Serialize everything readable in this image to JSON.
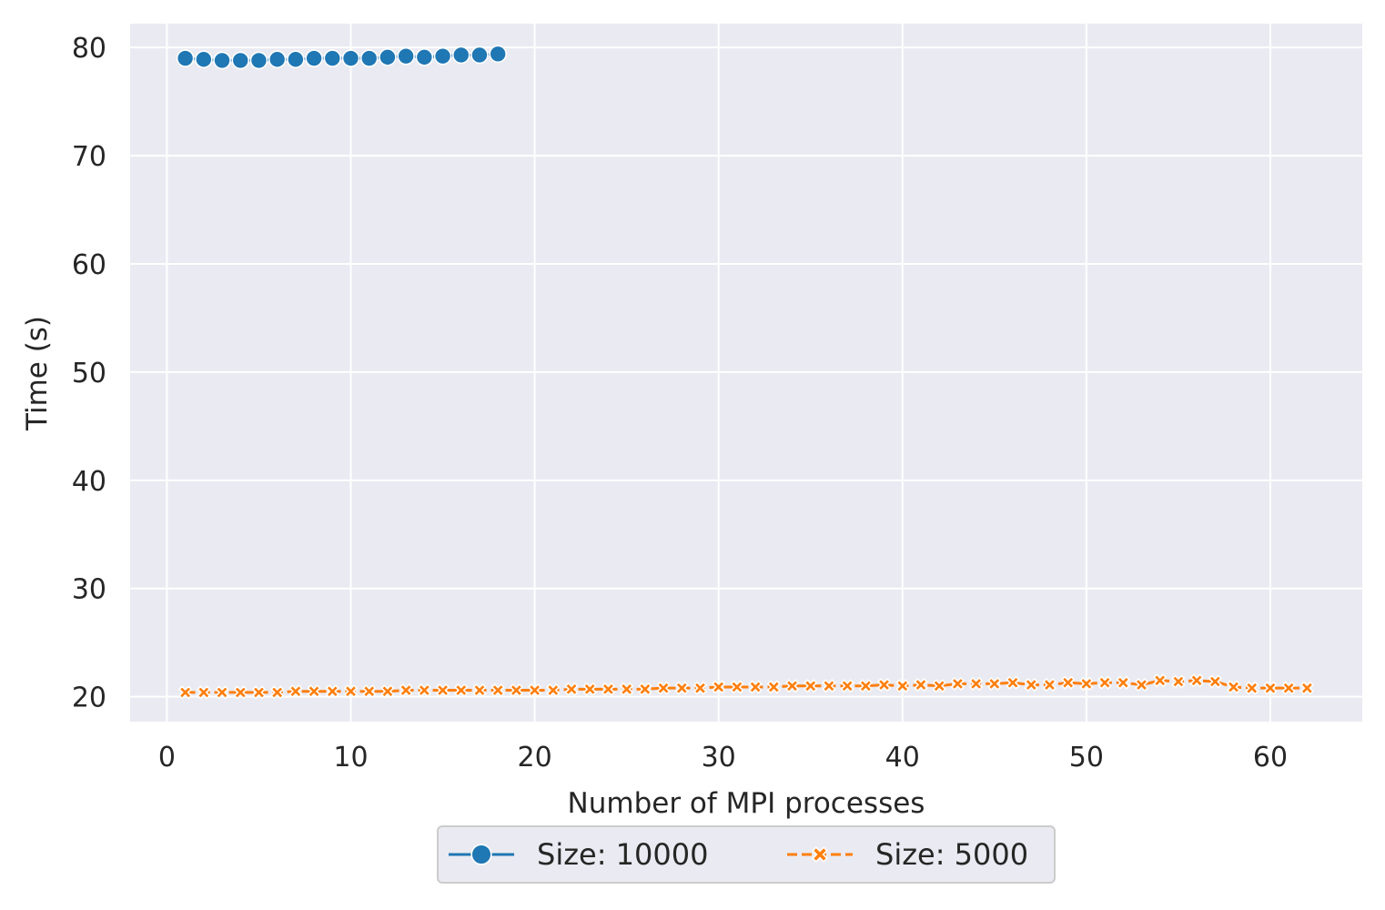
{
  "chart_data": {
    "type": "line",
    "title": "",
    "xlabel": "Number of MPI processes",
    "ylabel": "Time (s)",
    "xlim": [
      -2,
      65
    ],
    "ylim": [
      17.7,
      82.2
    ],
    "xticks": [
      0,
      10,
      20,
      30,
      40,
      50,
      60
    ],
    "yticks": [
      20,
      30,
      40,
      50,
      60,
      70,
      80
    ],
    "grid": true,
    "legend_position": "bottom-center",
    "background": "#eaeaf2",
    "series": [
      {
        "name": "Size: 10000",
        "color": "#1f77b4",
        "marker": "circle",
        "line_style": "solid",
        "x": [
          1,
          2,
          3,
          4,
          5,
          6,
          7,
          8,
          9,
          10,
          11,
          12,
          13,
          14,
          15,
          16,
          17,
          18
        ],
        "y": [
          79.0,
          78.9,
          78.8,
          78.8,
          78.8,
          78.9,
          78.9,
          79.0,
          79.0,
          79.0,
          79.0,
          79.1,
          79.2,
          79.1,
          79.2,
          79.3,
          79.3,
          79.4
        ]
      },
      {
        "name": "Size: 5000",
        "color": "#ff7f0e",
        "marker": "x",
        "line_style": "dashed",
        "x": [
          1,
          2,
          3,
          4,
          5,
          6,
          7,
          8,
          9,
          10,
          11,
          12,
          13,
          14,
          15,
          16,
          17,
          18,
          19,
          20,
          21,
          22,
          23,
          24,
          25,
          26,
          27,
          28,
          29,
          30,
          31,
          32,
          33,
          34,
          35,
          36,
          37,
          38,
          39,
          40,
          41,
          42,
          43,
          44,
          45,
          46,
          47,
          48,
          49,
          50,
          51,
          52,
          53,
          54,
          55,
          56,
          57,
          58,
          59,
          60,
          61,
          62
        ],
        "y": [
          20.4,
          20.4,
          20.4,
          20.4,
          20.4,
          20.4,
          20.5,
          20.5,
          20.5,
          20.5,
          20.5,
          20.5,
          20.6,
          20.6,
          20.6,
          20.6,
          20.6,
          20.6,
          20.6,
          20.6,
          20.6,
          20.7,
          20.7,
          20.7,
          20.7,
          20.7,
          20.8,
          20.8,
          20.8,
          20.9,
          20.9,
          20.9,
          20.9,
          21.0,
          21.0,
          21.0,
          21.0,
          21.0,
          21.1,
          21.0,
          21.1,
          21.0,
          21.2,
          21.2,
          21.2,
          21.3,
          21.1,
          21.1,
          21.3,
          21.2,
          21.3,
          21.3,
          21.1,
          21.5,
          21.4,
          21.5,
          21.4,
          20.9,
          20.8,
          20.8,
          20.8,
          20.8
        ]
      }
    ]
  }
}
